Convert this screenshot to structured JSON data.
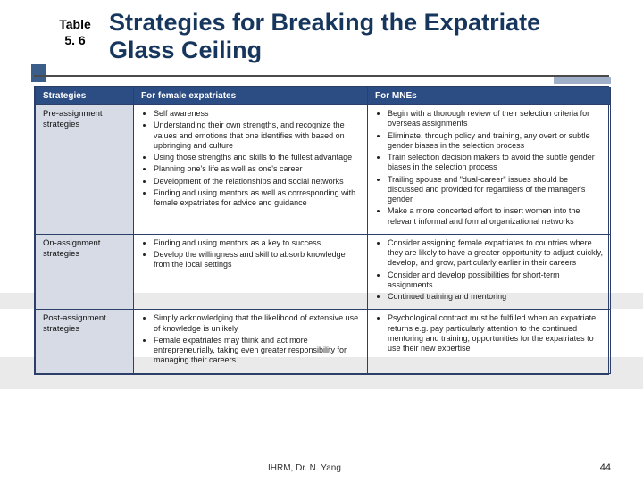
{
  "label": {
    "line1": "Table",
    "line2": "5. 6"
  },
  "title": "Strategies for Breaking the Expatriate Glass Ceiling",
  "colors": {
    "title": "#17365d",
    "header_bg": "#2c4d84",
    "header_text": "#ffffff",
    "row_label_bg": "#d6dbe6",
    "border": "#2b3f68",
    "rule": "#4a4a4a",
    "accent": "#3b5d8a",
    "band": "#d9d9d9",
    "right_tab": "#9fb0c8"
  },
  "footer": {
    "center": "IHRM, Dr. N. Yang",
    "page": "44"
  },
  "table": {
    "columns": [
      "Strategies",
      "For female expatriates",
      "For MNEs"
    ],
    "rows": [
      {
        "label": "Pre-assignment strategies",
        "female": [
          "Self awareness",
          "Understanding their own strengths, and recognize the values and emotions that one identifies with based on upbringing and culture",
          "Using those strengths and skills to the fullest advantage",
          "Planning one's life as well as one's career",
          "Development of the relationships and social networks",
          "Finding and using mentors as well as corresponding with female expatriates for advice and guidance"
        ],
        "mne": [
          "Begin with a thorough review of their selection criteria for overseas assignments",
          "Eliminate, through policy and training, any overt or subtle gender biases in the selection process",
          "Train selection decision makers to avoid the subtle gender biases in the selection process",
          "Trailing spouse and \"dual-career\" issues should be discussed and provided for regardless of the manager's gender",
          "Make a more concerted effort to insert women into the relevant informal and formal organizational networks"
        ]
      },
      {
        "label": "On-assignment strategies",
        "female": [
          "Finding and using mentors as a key to success",
          "Develop the willingness and skill to absorb knowledge from the local settings"
        ],
        "mne": [
          "Consider assigning female expatriates to countries where they are likely to have a greater opportunity to adjust quickly, develop, and grow, particularly earlier in their careers",
          "Consider and develop possibilities for short-term assignments",
          "Continued training and mentoring"
        ]
      },
      {
        "label": "Post-assignment strategies",
        "female": [
          "Simply acknowledging that the likelihood of extensive use of knowledge is unlikely",
          "Female expatriates may think and act more entrepreneurially, taking even greater responsibility for managing their careers"
        ],
        "mne": [
          "Psychological contract must be fulfilled when an expatriate returns e.g. pay particularly attention to the continued mentoring and training, opportunities for the expatriates to use their new expertise"
        ]
      }
    ]
  }
}
